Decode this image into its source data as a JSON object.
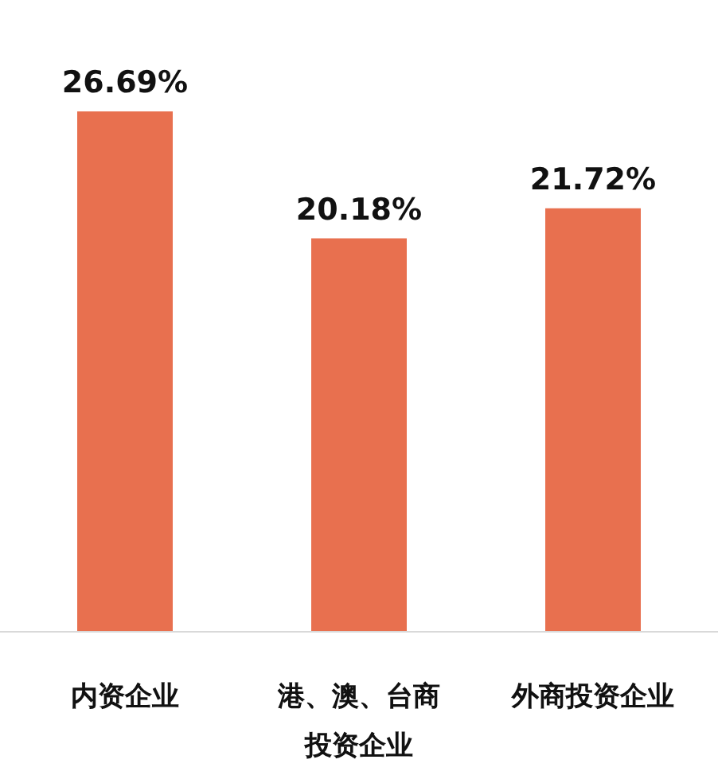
{
  "chart_data": {
    "type": "bar",
    "categories": [
      "内资企业",
      "港、澳、台商投资企业",
      "外商投资企业"
    ],
    "values": [
      26.69,
      20.18,
      21.72
    ],
    "value_labels": [
      "26.69%",
      "20.18%",
      "21.72%"
    ],
    "color": "#e8704f"
  }
}
